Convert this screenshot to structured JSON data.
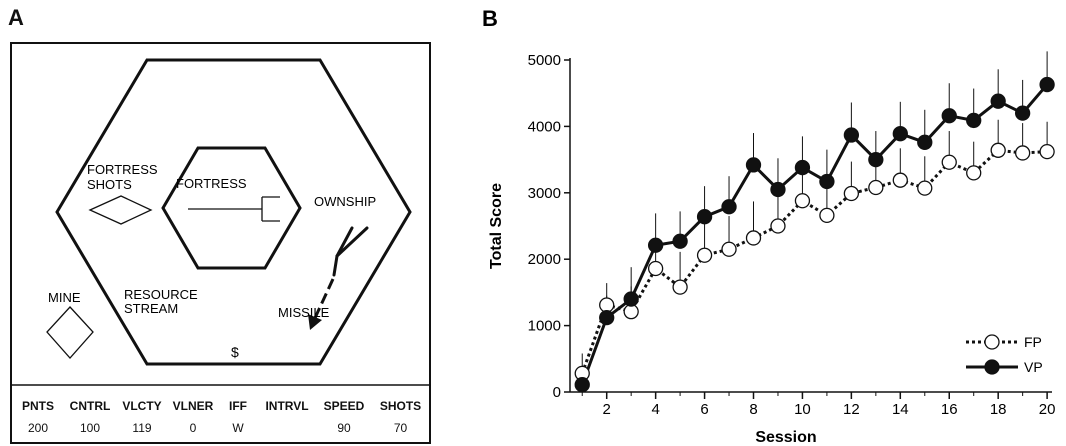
{
  "panel_a": {
    "letter": "A",
    "labels": {
      "fortress_shots": [
        "FORTRESS",
        "SHOTS"
      ],
      "fortress": "FORTRESS",
      "ownship": "OWNSHIP",
      "mine": "MINE",
      "resource_stream": [
        "RESOURCE",
        "STREAM"
      ],
      "resource_symbol": "$",
      "missile": "MISSILE"
    },
    "score_bar": {
      "headers": [
        "PNTS",
        "CNTRL",
        "VLCTY",
        "VLNER",
        "IFF",
        "INTRVL",
        "SPEED",
        "SHOTS"
      ],
      "values": [
        "200",
        "100",
        "119",
        "0",
        "W",
        "",
        "90",
        "70"
      ]
    }
  },
  "panel_b": {
    "letter": "B"
  },
  "chart_data": {
    "type": "line",
    "xlabel": "Session",
    "ylabel": "Total Score",
    "xlim": [
      0.5,
      20.2
    ],
    "ylim": [
      0,
      5000
    ],
    "xticks": [
      2,
      4,
      6,
      8,
      10,
      12,
      14,
      16,
      18,
      20
    ],
    "yticks": [
      0,
      1000,
      2000,
      3000,
      4000,
      5000
    ],
    "x": [
      1,
      2,
      3,
      4,
      5,
      6,
      7,
      8,
      9,
      10,
      11,
      12,
      13,
      14,
      15,
      16,
      17,
      18,
      19,
      20
    ],
    "series": [
      {
        "name": "FP",
        "style": "dotted-open",
        "values": [
          280,
          1310,
          1210,
          1860,
          1580,
          2060,
          2150,
          2320,
          2500,
          2880,
          2660,
          2990,
          3080,
          3190,
          3070,
          3460,
          3300,
          3640,
          3600,
          3620
        ],
        "error": [
          300,
          330,
          380,
          380,
          530,
          500,
          500,
          550,
          480,
          450,
          470,
          480,
          470,
          480,
          480,
          470,
          470,
          460,
          450,
          450
        ]
      },
      {
        "name": "VP",
        "style": "solid-filled",
        "values": [
          110,
          1120,
          1400,
          2210,
          2270,
          2640,
          2790,
          3420,
          3050,
          3380,
          3170,
          3870,
          3500,
          3890,
          3760,
          4160,
          4090,
          4380,
          4200,
          4630
        ],
        "error": [
          290,
          330,
          480,
          480,
          450,
          460,
          460,
          480,
          470,
          470,
          480,
          490,
          430,
          480,
          490,
          490,
          480,
          480,
          500,
          500
        ]
      }
    ],
    "legend": "bottom-right",
    "grid": false
  }
}
